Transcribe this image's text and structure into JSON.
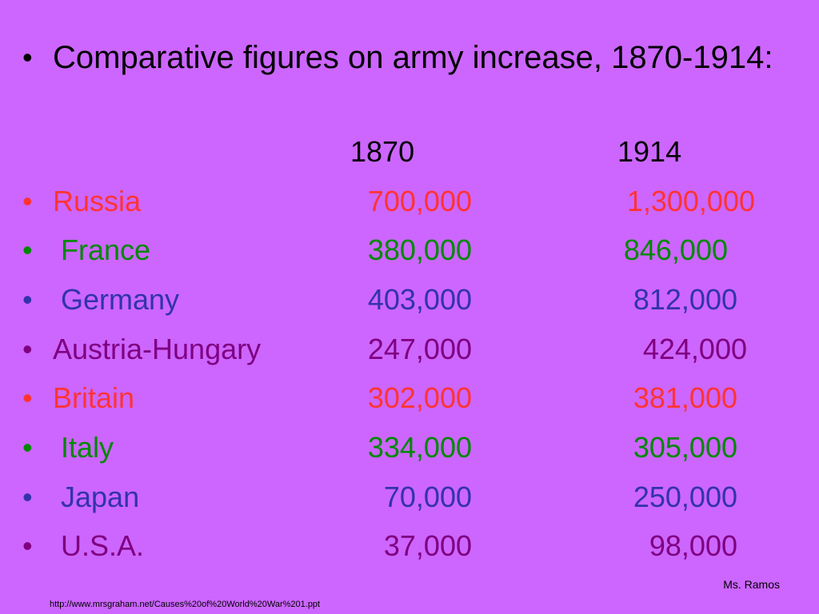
{
  "title": "Comparative figures on army increase, 1870-1914:",
  "bullet_char": "•",
  "headers": {
    "col1870": "1870",
    "col1914": "1914"
  },
  "rows": [
    {
      "country": "Russia",
      "v1870": "700,000",
      "v1914": "1,300,000",
      "color": "#ff3333"
    },
    {
      "country": " France",
      "v1870": "380,000",
      "v1914": "846,000",
      "color": "#008800"
    },
    {
      "country": " Germany",
      "v1870": "403,000",
      "v1914": "812,000",
      "color": "#3333aa"
    },
    {
      "country": "Austria-Hungary",
      "v1870": "247,000",
      "v1914": "424,000",
      "color": "#800080"
    },
    {
      "country": "Britain",
      "v1870": "302,000",
      "v1914": "381,000",
      "color": "#ff3333"
    },
    {
      "country": " Italy",
      "v1870": "334,000",
      "v1914": "305,000",
      "color": "#008800"
    },
    {
      "country": " Japan",
      "v1870": "70,000",
      "v1914": "250,000",
      "color": "#3333aa"
    },
    {
      "country": " U.S.A.",
      "v1870": "37,000",
      "v1914": "98,000",
      "color": "#800080"
    }
  ],
  "author": "Ms. Ramos",
  "source": "http://www.mrsgraham.net/Causes%20of%20World%20War%201.ppt"
}
